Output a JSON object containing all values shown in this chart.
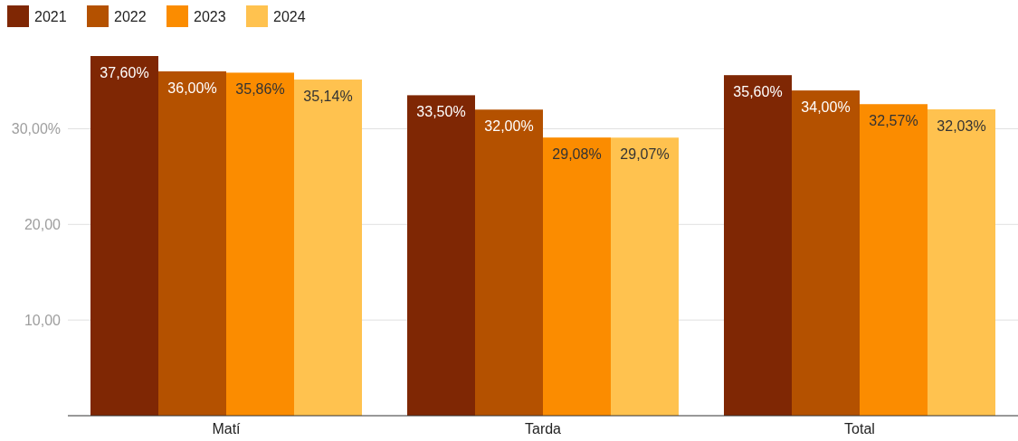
{
  "chart_data": {
    "type": "bar",
    "categories": [
      "Matí",
      "Tarda",
      "Total"
    ],
    "series": [
      {
        "name": "2021",
        "color": "#7f2704",
        "values": [
          37.6,
          33.5,
          35.6
        ],
        "value_labels": [
          "37,60%",
          "33,50%",
          "35,60%"
        ]
      },
      {
        "name": "2022",
        "color": "#b45100",
        "values": [
          36.0,
          32.0,
          34.0
        ],
        "value_labels": [
          "36,00%",
          "32,00%",
          "34,00%"
        ]
      },
      {
        "name": "2023",
        "color": "#fb8c00",
        "values": [
          35.86,
          29.08,
          32.57
        ],
        "value_labels": [
          "35,86%",
          "29,08%",
          "32,57%"
        ]
      },
      {
        "name": "2024",
        "color": "#ffc24f",
        "values": [
          35.14,
          29.07,
          32.03
        ],
        "value_labels": [
          "35,14%",
          "29,07%",
          "32,03%"
        ]
      }
    ],
    "ylim": [
      0,
      37.6
    ],
    "yticks": [
      {
        "value": 10,
        "label": "10,00"
      },
      {
        "value": 20,
        "label": "20,00"
      },
      {
        "value": 30,
        "label": "30,00%"
      }
    ],
    "grid": "y",
    "legend": "top left"
  }
}
